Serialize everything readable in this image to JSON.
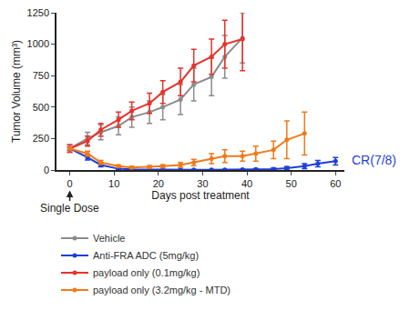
{
  "chart_data": {
    "type": "line",
    "x_label": "Days post treatment",
    "y_label": "Tumor Volume (mm³)",
    "xlim": [
      -3,
      62
    ],
    "ylim": [
      0,
      1250
    ],
    "xticks": [
      0,
      10,
      20,
      30,
      40,
      50,
      60
    ],
    "yticks": [
      0,
      250,
      500,
      750,
      1000,
      1250
    ],
    "grid": false,
    "legend": "bottom left",
    "marker": "circle",
    "annotations": [
      {
        "text": "Single Dose",
        "x": 0
      },
      {
        "text": "CR(7/8)",
        "y": 80,
        "color": "#1f3fd6"
      }
    ],
    "series": [
      {
        "name": "Vehicle",
        "color": "#8c8c8c",
        "x": [
          0,
          4,
          7,
          11,
          14,
          18,
          21,
          25,
          28,
          32,
          35,
          39
        ],
        "values": [
          170,
          250,
          300,
          350,
          420,
          460,
          500,
          560,
          680,
          740,
          900,
          1050
        ],
        "errors": [
          30,
          50,
          60,
          70,
          80,
          90,
          100,
          120,
          130,
          150,
          170,
          200
        ]
      },
      {
        "name": "Anti-FRA ADC (5mg/kg)",
        "color": "#1f3fd6",
        "x": [
          0,
          4,
          7,
          11,
          14,
          18,
          21,
          25,
          28,
          32,
          35,
          39,
          42,
          46,
          49,
          53,
          56,
          60
        ],
        "values": [
          170,
          100,
          40,
          10,
          5,
          3,
          2,
          2,
          2,
          2,
          2,
          3,
          5,
          8,
          15,
          30,
          50,
          70
        ],
        "errors": [
          15,
          20,
          15,
          8,
          5,
          3,
          2,
          2,
          2,
          2,
          2,
          3,
          5,
          8,
          12,
          20,
          25,
          30
        ]
      },
      {
        "name": "payload only (0.1mg/kg)",
        "color": "#e8322a",
        "x": [
          0,
          4,
          7,
          11,
          14,
          18,
          21,
          25,
          28,
          32,
          35,
          39
        ],
        "values": [
          170,
          230,
          320,
          400,
          470,
          530,
          620,
          700,
          830,
          900,
          1000,
          1040
        ],
        "errors": [
          30,
          40,
          50,
          60,
          70,
          80,
          90,
          110,
          130,
          140,
          190,
          250
        ]
      },
      {
        "name": "payload only (3.2mg/kg - MTD)",
        "color": "#f07a1a",
        "x": [
          0,
          4,
          7,
          11,
          14,
          18,
          21,
          25,
          28,
          32,
          35,
          39,
          42,
          46,
          49,
          53
        ],
        "values": [
          170,
          130,
          60,
          30,
          20,
          25,
          30,
          40,
          60,
          90,
          110,
          110,
          130,
          160,
          240,
          290
        ],
        "errors": [
          10,
          20,
          15,
          10,
          8,
          10,
          12,
          20,
          25,
          40,
          50,
          40,
          60,
          70,
          150,
          170
        ]
      }
    ]
  }
}
